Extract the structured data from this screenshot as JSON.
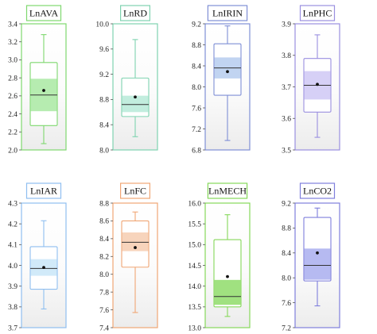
{
  "chart_data": [
    {
      "type": "box",
      "title": "LnAVA",
      "color": "#7fd86f",
      "fill": "#a9e9a2",
      "ylim": [
        2.0,
        3.4
      ],
      "ticks": [
        2.0,
        2.2,
        2.4,
        2.6,
        2.8,
        3.0,
        3.2,
        3.4
      ],
      "tick_labels": [
        "2.0",
        "2.2",
        "2.4",
        "2.6",
        "2.8",
        "3.0",
        "3.2",
        "3.4"
      ],
      "whisker_low": 2.07,
      "q1": 2.27,
      "ci_low": 2.43,
      "median": 2.61,
      "ci_high": 2.79,
      "q3": 2.97,
      "whisker_high": 3.28,
      "mean": 2.66
    },
    {
      "type": "box",
      "title": "LnRD",
      "color": "#7fd3b0",
      "fill": "#b7ead8",
      "ylim": [
        8.0,
        10.0
      ],
      "ticks": [
        8.0,
        8.4,
        8.8,
        9.2,
        9.6,
        10.0
      ],
      "tick_labels": [
        "8.0",
        "8.4",
        "8.8",
        "9.2",
        "9.6",
        "10.0"
      ],
      "whisker_low": 8.21,
      "q1": 8.53,
      "ci_low": 8.6,
      "median": 8.72,
      "ci_high": 8.86,
      "q3": 9.14,
      "whisker_high": 9.75,
      "mean": 8.84
    },
    {
      "type": "box",
      "title": "LnIRIN",
      "color": "#7f8fd6",
      "fill": "#b6cdee",
      "ylim": [
        6.8,
        9.2
      ],
      "ticks": [
        6.8,
        7.2,
        7.6,
        8.0,
        8.4,
        8.8,
        9.2
      ],
      "tick_labels": [
        "6.8",
        "7.2",
        "7.6",
        "8.0",
        "8.4",
        "8.8",
        "9.2"
      ],
      "whisker_low": 6.98,
      "q1": 7.84,
      "ci_low": 8.16,
      "median": 8.36,
      "ci_high": 8.56,
      "q3": 8.82,
      "whisker_high": 9.16,
      "mean": 8.29
    },
    {
      "type": "box",
      "title": "LnPHC",
      "color": "#9a8fe0",
      "fill": "#cfc8f4",
      "ylim": [
        3.5,
        3.9
      ],
      "ticks": [
        3.5,
        3.6,
        3.7,
        3.8,
        3.9
      ],
      "tick_labels": [
        "3.5",
        "3.6",
        "3.7",
        "3.8",
        "3.9"
      ],
      "whisker_low": 3.54,
      "q1": 3.62,
      "ci_low": 3.66,
      "median": 3.705,
      "ci_high": 3.75,
      "q3": 3.79,
      "whisker_high": 3.865,
      "mean": 3.708
    },
    {
      "type": "box",
      "title": "LnIAR",
      "color": "#8fbff0",
      "fill": "#c9e6f8",
      "ylim": [
        3.7,
        4.3
      ],
      "ticks": [
        3.7,
        3.8,
        3.9,
        4.0,
        4.1,
        4.2,
        4.3
      ],
      "tick_labels": [
        "3.7",
        "3.8",
        "3.9",
        "4.0",
        "4.1",
        "4.2",
        "4.3"
      ],
      "whisker_low": 3.79,
      "q1": 3.885,
      "ci_low": 3.95,
      "median": 3.985,
      "ci_high": 4.03,
      "q3": 4.09,
      "whisker_high": 4.215,
      "mean": 3.99
    },
    {
      "type": "box",
      "title": "LnFC",
      "color": "#f0a675",
      "fill": "#f6cdb0",
      "ylim": [
        7.4,
        8.8
      ],
      "ticks": [
        7.4,
        7.6,
        7.8,
        8.0,
        8.2,
        8.4,
        8.6,
        8.8
      ],
      "tick_labels": [
        "7.4",
        "7.6",
        "7.8",
        "8.0",
        "8.2",
        "8.4",
        "8.6",
        "8.8"
      ],
      "whisker_low": 7.57,
      "q1": 8.08,
      "ci_low": 8.26,
      "median": 8.36,
      "ci_high": 8.47,
      "q3": 8.6,
      "whisker_high": 8.7,
      "mean": 8.3
    },
    {
      "type": "box",
      "title": "LnMECH",
      "color": "#86d85a",
      "fill": "#8fdc6a",
      "ylim": [
        13.0,
        16.0
      ],
      "ticks": [
        13.0,
        13.5,
        14.0,
        14.5,
        15.0,
        15.5,
        16.0
      ],
      "tick_labels": [
        "13.0",
        "13.5",
        "14.0",
        "14.5",
        "15.0",
        "15.5",
        "16.0"
      ],
      "whisker_low": 13.27,
      "q1": 13.5,
      "ci_low": 13.55,
      "median": 13.75,
      "ci_high": 14.15,
      "q3": 15.12,
      "whisker_high": 15.72,
      "mean": 14.23
    },
    {
      "type": "box",
      "title": "LnCO2",
      "color": "#7f7fdc",
      "fill": "#a9aeee",
      "ylim": [
        7.2,
        9.2
      ],
      "ticks": [
        7.2,
        7.6,
        8.0,
        8.4,
        8.8,
        9.2
      ],
      "tick_labels": [
        "7.2",
        "7.6",
        "8.0",
        "8.4",
        "8.8",
        "9.2"
      ],
      "whisker_low": 7.55,
      "q1": 7.95,
      "ci_low": 7.97,
      "median": 8.2,
      "ci_high": 8.47,
      "q3": 8.97,
      "whisker_high": 9.12,
      "mean": 8.4
    }
  ]
}
